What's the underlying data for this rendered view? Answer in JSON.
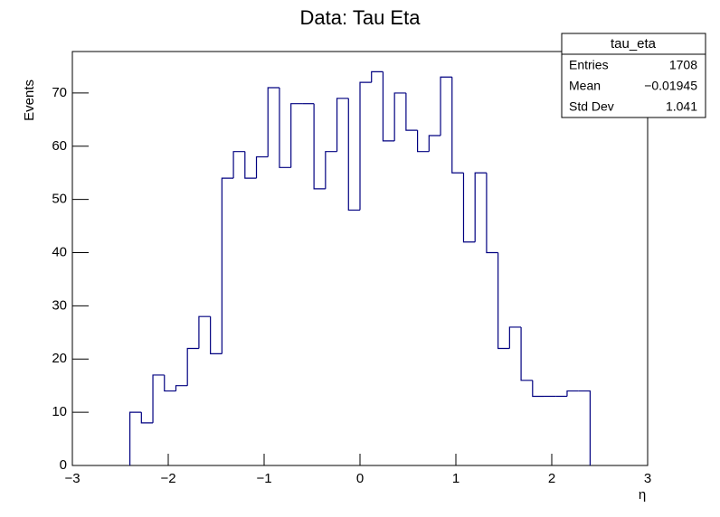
{
  "chart_data": {
    "type": "histogram",
    "title": "Data:  Tau Eta",
    "x_label": "η",
    "y_label": "Events",
    "color": "#000080",
    "bins": [
      -2.4,
      -2.28,
      -2.16,
      -2.04,
      -1.92,
      -1.8,
      -1.68,
      -1.56,
      -1.44,
      -1.32,
      -1.2,
      -1.08,
      -0.96,
      -0.84,
      -0.72,
      -0.6,
      -0.48,
      -0.36,
      -0.24,
      -0.12,
      0,
      0.12,
      0.24,
      0.36,
      0.48,
      0.6,
      0.72,
      0.84,
      0.96,
      1.08,
      1.2,
      1.32,
      1.44,
      1.56,
      1.68,
      1.8,
      1.92,
      2.04,
      2.16,
      2.28,
      2.4
    ],
    "counts": [
      10,
      8,
      17,
      14,
      15,
      22,
      28,
      21,
      54,
      59,
      54,
      58,
      71,
      56,
      68,
      68,
      52,
      59,
      69,
      48,
      72,
      74,
      61,
      70,
      63,
      59,
      62,
      73,
      55,
      42,
      55,
      40,
      22,
      26,
      16,
      13,
      13,
      13,
      14,
      14
    ],
    "xlim": [
      -3,
      3
    ],
    "ylim": [
      0,
      77.8
    ],
    "xticks": [
      {
        "value": -3,
        "label": "−3"
      },
      {
        "value": -2,
        "label": "−2"
      },
      {
        "value": -1,
        "label": "−1"
      },
      0,
      1,
      2,
      3
    ],
    "yticks": [
      0,
      10,
      20,
      30,
      40,
      50,
      60,
      70
    ],
    "stats": {
      "title": "tau_eta",
      "rows": [
        [
          "Entries",
          "1708"
        ],
        [
          "Mean",
          "−0.01945"
        ],
        [
          "Std Dev",
          "1.041"
        ]
      ]
    }
  }
}
